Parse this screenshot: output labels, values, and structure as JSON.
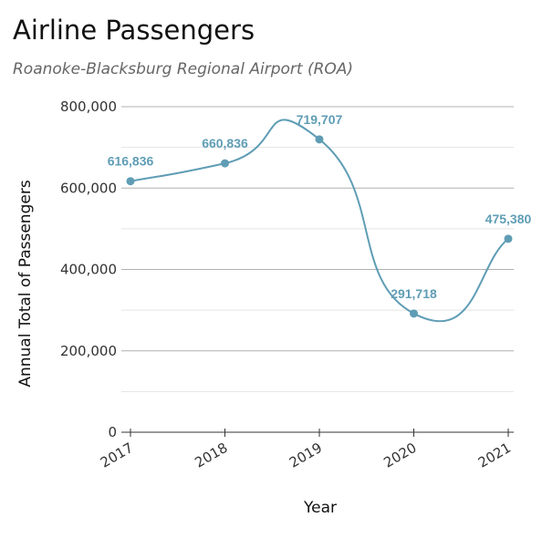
{
  "header": {
    "title": "Airline Passengers",
    "subtitle": "Roanoke-Blacksburg Regional Airport (ROA)"
  },
  "chart_data": {
    "type": "line",
    "title": "Airline Passengers",
    "subtitle": "Roanoke-Blacksburg Regional Airport (ROA)",
    "xlabel": "Year",
    "ylabel": "Annual Total of Passengers",
    "categories": [
      "2017",
      "2018",
      "2019",
      "2020",
      "2021"
    ],
    "series": [
      {
        "values": [
          616836,
          660836,
          719707,
          291718,
          475380
        ]
      }
    ],
    "data_labels": [
      "616,836",
      "660,836",
      "719,707",
      "291,718",
      "475,380"
    ],
    "ylim": [
      0,
      800000
    ],
    "y_ticks": [
      0,
      200000,
      400000,
      600000,
      800000
    ],
    "y_tick_labels": [
      "0",
      "200,000",
      "400,000",
      "600,000",
      "800,000"
    ],
    "grid": true,
    "line_style": "smooth",
    "colors": {
      "series": "#5f9db5",
      "grid_major": "#b0b0b0",
      "grid_minor": "#e4e4e4",
      "axis": "#333333"
    }
  }
}
